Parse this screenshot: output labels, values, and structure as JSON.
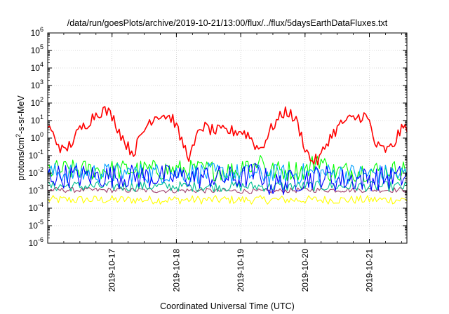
{
  "chart_data": {
    "type": "line",
    "title": "/data/run/goesPlots/archive/2019-10-21/13:00/flux/../flux/5daysEarthDataFluxes.txt",
    "xlabel": "Coordinated Universal Time (UTC)",
    "ylabel": {
      "main": "protons/cm",
      "sup": "2",
      "rest": "-s-sr-MeV"
    },
    "x_scale": "time",
    "x_range": [
      "2019-10-16T00:00",
      "2019-10-21T14:00"
    ],
    "x_ticks": [
      {
        "label": "2019-10-17",
        "t": "2019-10-17T00:00"
      },
      {
        "label": "2019-10-18",
        "t": "2019-10-18T00:00"
      },
      {
        "label": "2019-10-19",
        "t": "2019-10-19T00:00"
      },
      {
        "label": "2019-10-20",
        "t": "2019-10-20T00:00"
      },
      {
        "label": "2019-10-21",
        "t": "2019-10-21T00:00"
      }
    ],
    "y_scale": "log",
    "ylim": [
      1e-06,
      1000000.0
    ],
    "y_ticks": [
      {
        "base": "10",
        "exp": "6",
        "value": 1000000.0
      },
      {
        "base": "10",
        "exp": "5",
        "value": 100000.0
      },
      {
        "base": "10",
        "exp": "4",
        "value": 10000.0
      },
      {
        "base": "10",
        "exp": "3",
        "value": 1000.0
      },
      {
        "base": "10",
        "exp": "2",
        "value": 100.0
      },
      {
        "base": "10",
        "exp": "1",
        "value": 10.0
      },
      {
        "base": "10",
        "exp": "0",
        "value": 1.0
      },
      {
        "base": "10",
        "exp": "-1",
        "value": 0.1
      },
      {
        "base": "10",
        "exp": "-2",
        "value": 0.01
      },
      {
        "base": "10",
        "exp": "-3",
        "value": 0.001
      },
      {
        "base": "10",
        "exp": "-4",
        "value": 0.0001
      },
      {
        "base": "10",
        "exp": "-5",
        "value": 1e-05
      },
      {
        "base": "10",
        "exp": "-6",
        "value": 1e-06
      }
    ],
    "grid": true,
    "series": [
      {
        "color": "#ff0000",
        "noise": 0.35,
        "points": [
          [
            "2019-10-16T00:00",
            5
          ],
          [
            "2019-10-16T03:00",
            0.8
          ],
          [
            "2019-10-16T06:00",
            0.15
          ],
          [
            "2019-10-16T09:00",
            0.6
          ],
          [
            "2019-10-16T12:00",
            3
          ],
          [
            "2019-10-16T15:00",
            8
          ],
          [
            "2019-10-16T18:00",
            25
          ],
          [
            "2019-10-16T21:00",
            40
          ],
          [
            "2019-10-17T00:00",
            20
          ],
          [
            "2019-10-17T03:00",
            2
          ],
          [
            "2019-10-17T06:00",
            0.3
          ],
          [
            "2019-10-17T08:00",
            0.15
          ],
          [
            "2019-10-17T11:00",
            1.5
          ],
          [
            "2019-10-17T14:00",
            10
          ],
          [
            "2019-10-17T17:00",
            22
          ],
          [
            "2019-10-17T20:00",
            20
          ],
          [
            "2019-10-17T23:00",
            12
          ],
          [
            "2019-10-18T01:00",
            1.5
          ],
          [
            "2019-10-18T03:00",
            0.3
          ],
          [
            "2019-10-18T05:00",
            0.08
          ],
          [
            "2019-10-18T07:00",
            0.5
          ],
          [
            "2019-10-18T09:00",
            5
          ],
          [
            "2019-10-18T14:00",
            2.5
          ],
          [
            "2019-10-19T00:00",
            2.5
          ],
          [
            "2019-10-19T03:00",
            1.5
          ],
          [
            "2019-10-19T06:00",
            0.3
          ],
          [
            "2019-10-19T07:30",
            0.25
          ],
          [
            "2019-10-19T12:00",
            5
          ],
          [
            "2019-10-19T17:00",
            40
          ],
          [
            "2019-10-19T21:00",
            8
          ],
          [
            "2019-10-20T00:00",
            0.3
          ],
          [
            "2019-10-20T02:00",
            0.06
          ],
          [
            "2019-10-20T05:00",
            0.05
          ],
          [
            "2019-10-20T09:00",
            1
          ],
          [
            "2019-10-20T14:00",
            8
          ],
          [
            "2019-10-20T22:00",
            20
          ],
          [
            "2019-10-21T00:00",
            8
          ],
          [
            "2019-10-21T02:00",
            0.5
          ],
          [
            "2019-10-21T04:00",
            0.25
          ],
          [
            "2019-10-21T07:00",
            0.2
          ],
          [
            "2019-10-21T09:00",
            0.4
          ],
          [
            "2019-10-21T11:00",
            2
          ],
          [
            "2019-10-21T14:00",
            5
          ]
        ]
      },
      {
        "color": "#00ff00",
        "noise": 0.6,
        "points": [
          [
            "2019-10-16T00:00",
            0.015
          ],
          [
            "2019-10-18T12:00",
            0.015
          ],
          [
            "2019-10-19T00:00",
            0.013
          ],
          [
            "2019-10-19T02:00",
            0.1
          ],
          [
            "2019-10-19T04:00",
            0.012
          ],
          [
            "2019-10-19T07:00",
            0.1
          ],
          [
            "2019-10-19T10:00",
            0.013
          ],
          [
            "2019-10-20T01:00",
            0.015
          ],
          [
            "2019-10-20T05:00",
            0.08
          ],
          [
            "2019-10-20T09:00",
            0.012
          ],
          [
            "2019-10-21T14:00",
            0.015
          ]
        ]
      },
      {
        "color": "#00a0ff",
        "noise": 0.6,
        "points": [
          [
            "2019-10-16T00:00",
            0.01
          ],
          [
            "2019-10-18T12:00",
            0.01
          ],
          [
            "2019-10-19T00:00",
            0.009
          ],
          [
            "2019-10-19T08:00",
            0.008
          ],
          [
            "2019-10-20T04:00",
            0.01
          ],
          [
            "2019-10-21T14:00",
            0.008
          ]
        ]
      },
      {
        "color": "#0000ff",
        "noise": 0.7,
        "points": [
          [
            "2019-10-16T00:00",
            0.007
          ],
          [
            "2019-10-18T12:00",
            0.006
          ],
          [
            "2019-10-19T00:00",
            0.005
          ],
          [
            "2019-10-19T07:00",
            0.012
          ],
          [
            "2019-10-19T11:00",
            0.002
          ],
          [
            "2019-10-20T06:00",
            0.007
          ],
          [
            "2019-10-20T12:00",
            0.004
          ],
          [
            "2019-10-21T14:00",
            0.006
          ]
        ]
      },
      {
        "color": "#00c090",
        "noise": 0.3,
        "points": [
          [
            "2019-10-16T00:00",
            0.0018
          ],
          [
            "2019-10-18T12:00",
            0.0017
          ],
          [
            "2019-10-20T00:00",
            0.0018
          ],
          [
            "2019-10-21T14:00",
            0.0017
          ]
        ]
      },
      {
        "color": "#a0406e",
        "noise": 0.15,
        "points": [
          [
            "2019-10-16T00:00",
            0.0011
          ],
          [
            "2019-10-18T12:00",
            0.001
          ],
          [
            "2019-10-19T08:00",
            0.0009
          ],
          [
            "2019-10-20T00:00",
            0.0011
          ],
          [
            "2019-10-21T14:00",
            0.0011
          ]
        ]
      },
      {
        "color": "#ffff00",
        "noise": 0.25,
        "points": [
          [
            "2019-10-16T00:00",
            0.0003
          ],
          [
            "2019-10-21T14:00",
            0.0003
          ]
        ]
      }
    ]
  }
}
